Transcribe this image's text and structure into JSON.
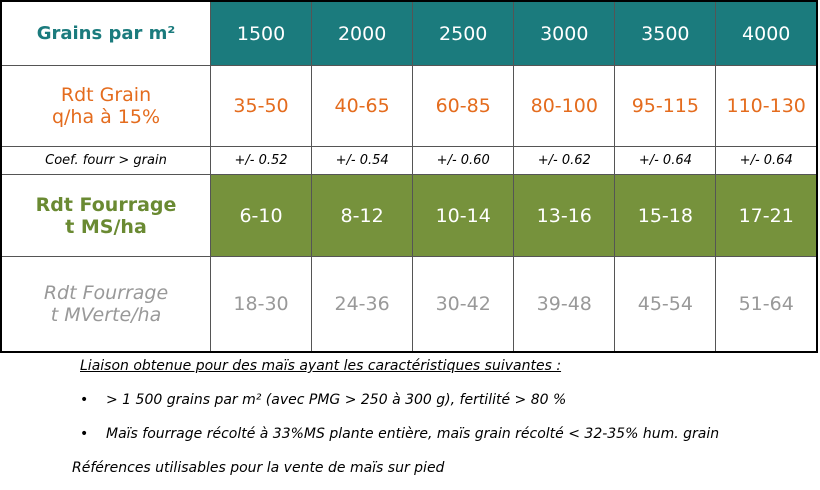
{
  "table": {
    "header": {
      "label": "Grains par m²",
      "cells": [
        "1500",
        "2000",
        "2500",
        "3000",
        "3500",
        "4000"
      ]
    },
    "rows": [
      {
        "label": [
          "Rdt Grain",
          "q/ha à 15%"
        ],
        "cells": [
          "35-50",
          "40-65",
          "60-85",
          "80-100",
          "95-115",
          "110-130"
        ]
      },
      {
        "label": [
          "Coef. fourr > grain"
        ],
        "cells": [
          "+/- 0.52",
          "+/- 0.54",
          "+/- 0.60",
          "+/- 0.62",
          "+/- 0.64",
          "+/- 0.64"
        ]
      },
      {
        "label": [
          "Rdt Fourrage",
          "t MS/ha"
        ],
        "cells": [
          "6-10",
          "8-12",
          "10-14",
          "13-16",
          "15-18",
          "17-21"
        ]
      },
      {
        "label": [
          "Rdt Fourrage",
          "t MVerte/ha"
        ],
        "cells": [
          "18-30",
          "24-36",
          "30-42",
          "39-48",
          "45-54",
          "51-64"
        ]
      }
    ]
  },
  "notes": {
    "intro": "Liaison obtenue pour des maïs ayant les caractéristiques suivantes  :",
    "bullets": [
      "> 1 500 grains par m² (avec PMG  > 250 à 300 g), fertilité > 80 %",
      "Maïs fourrage récolté à 33%MS plante entière, maïs grain récolté < 32-35% hum. grain"
    ],
    "footer": "Références utilisables pour la vente de maïs sur pied"
  }
}
